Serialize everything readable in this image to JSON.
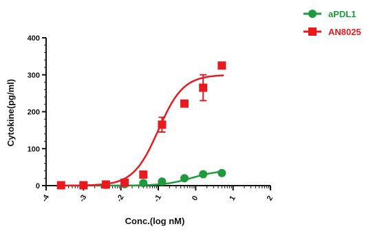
{
  "chart_data": {
    "type": "scatter",
    "xlabel": "Conc.(log nM)",
    "ylabel": "Cytokine(pg/ml)",
    "xlim": [
      -4,
      2
    ],
    "ylim": [
      0,
      400
    ],
    "x_ticks": [
      -4,
      -3,
      -2,
      -1,
      0,
      1,
      2
    ],
    "x_tick_labels": [
      "-4",
      "-3",
      "-2",
      "-1",
      "0",
      "1",
      "2"
    ],
    "y_ticks": [
      0,
      100,
      200,
      300,
      400
    ],
    "y_tick_labels": [
      "0",
      "100",
      "200",
      "300",
      "400"
    ],
    "legend_position": "top-right",
    "series": [
      {
        "name": "aPDL1",
        "color": "#1e9a3c",
        "marker": "circle",
        "x": [
          -3.6,
          -3.0,
          -2.4,
          -1.9,
          -1.4,
          -0.9,
          -0.3,
          0.2,
          0.7
        ],
        "y": [
          1,
          1,
          2,
          4,
          7,
          11,
          20,
          31,
          34
        ],
        "fit_bottom": 0,
        "fit_top": 42,
        "fit_logec50": -0.1,
        "fit_hill": 1.2
      },
      {
        "name": "AN8025",
        "color": "#e8191f",
        "marker": "square",
        "x": [
          -3.6,
          -3.0,
          -2.4,
          -1.9,
          -1.4,
          -0.9,
          -0.3,
          0.2,
          0.7
        ],
        "y": [
          1,
          1,
          3,
          8,
          30,
          165,
          222,
          265,
          325
        ],
        "y_error": [
          0,
          0,
          0,
          0,
          0,
          20,
          0,
          35,
          0
        ],
        "fit_bottom": 0,
        "fit_top": 300,
        "fit_logec50": -1.0,
        "fit_hill": 1.3
      }
    ]
  }
}
